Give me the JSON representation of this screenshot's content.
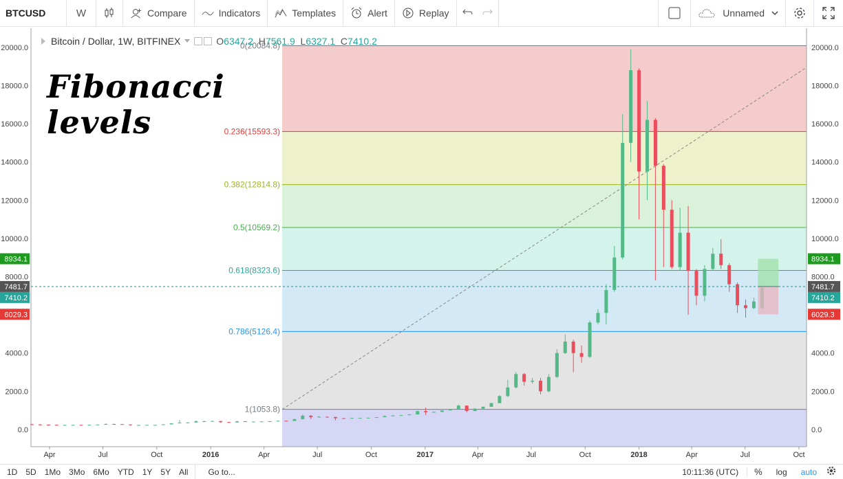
{
  "toolbar": {
    "symbol": "BTCUSD",
    "interval": "W",
    "compare": "Compare",
    "indicators": "Indicators",
    "templates": "Templates",
    "alert": "Alert",
    "replay": "Replay",
    "layout_name": "Unnamed"
  },
  "legend": {
    "title": "Bitcoin / Dollar, 1W, BITFINEX",
    "o_label": "O",
    "o": "6347.2",
    "h_label": "H",
    "h": "7561.9",
    "l_label": "L",
    "l": "6327.1",
    "c_label": "C",
    "c": "7410.2"
  },
  "overlay_title": [
    "Fibonacci",
    "levels"
  ],
  "bottombar": {
    "ranges": [
      "1D",
      "5D",
      "1Mo",
      "3Mo",
      "6Mo",
      "YTD",
      "1Y",
      "5Y",
      "All"
    ],
    "goto": "Go to...",
    "time": "10:11:36 (UTC)",
    "percent": "%",
    "log": "log",
    "auto": "auto"
  },
  "chart_data": {
    "type": "candlestick",
    "title": "Bitcoin / Dollar, 1W, BITFINEX",
    "y_ticks": [
      0,
      2000,
      4000,
      6000,
      8000,
      10000,
      12000,
      14000,
      16000,
      18000,
      20000
    ],
    "y_tick_labels": [
      "0.0",
      "2000.0",
      "4000.0",
      "",
      "8000.0",
      "10000.0",
      "12000.0",
      "14000.0",
      "16000.0",
      "18000.0",
      "20000.0"
    ],
    "ylim": [
      -900,
      21000
    ],
    "x_labels": [
      "Apr",
      "Jul",
      "Oct",
      "2016",
      "Apr",
      "Jul",
      "Oct",
      "2017",
      "Apr",
      "Jul",
      "Oct",
      "2018",
      "Apr",
      "Jul",
      "Oct"
    ],
    "x_label_dates": [
      "2015-04-01",
      "2015-07-01",
      "2015-10-01",
      "2016-01-01",
      "2016-04-01",
      "2016-07-01",
      "2016-10-01",
      "2017-01-01",
      "2017-04-01",
      "2017-07-01",
      "2017-10-01",
      "2018-01-01",
      "2018-04-01",
      "2018-07-01",
      "2018-10-01"
    ],
    "bold_x_labels": [
      "2016",
      "2017",
      "2018"
    ],
    "fib_levels": [
      {
        "ratio": "0",
        "value": 20084.8,
        "label": "0(20084.8)",
        "color": "#787b86"
      },
      {
        "ratio": "0.236",
        "value": 15593.3,
        "label": "0.236(15593.3)",
        "color": "#e53935"
      },
      {
        "ratio": "0.382",
        "value": 12814.8,
        "label": "0.382(12814.8)",
        "color": "#9fb51b"
      },
      {
        "ratio": "0.5",
        "value": 10569.2,
        "label": "0.5(10569.2)",
        "color": "#4caf50"
      },
      {
        "ratio": "0.618",
        "value": 8323.6,
        "label": "0.618(8323.6)",
        "color": "#26a69a"
      },
      {
        "ratio": "0.786",
        "value": 5126.4,
        "label": "0.786(5126.4)",
        "color": "#2196f3"
      },
      {
        "ratio": "1",
        "value": 1053.8,
        "label": "1(1053.8)",
        "color": "#787b86"
      }
    ],
    "fib_fills": [
      "#f4cccc",
      "#eef2cc",
      "#d9f2d9",
      "#d4f3ea",
      "#d3e9f5",
      "#e4e4e4",
      "#d6d6f5"
    ],
    "fib_start_date": "2016-05-02",
    "fib_bottom_value": -900,
    "price_labels": [
      {
        "value": 8934.1,
        "text": "8934.1",
        "color": "#1e9a1e"
      },
      {
        "value": 7481.7,
        "text": "7481.7",
        "color": "#555555"
      },
      {
        "value": 7410.2,
        "text": "7410.2",
        "color": "#26a69a"
      },
      {
        "value": 6029.3,
        "text": "6029.3",
        "color": "#e53935"
      }
    ],
    "current_price": 7481.7,
    "trend_line": {
      "from_date": "2016-05-02",
      "from_value": 1053.8,
      "to_date": "2018-12-10",
      "to_value": 20084.8
    },
    "position_tool": {
      "start_date": "2018-07-23",
      "end_date": "2018-08-27",
      "entry": 7481.7,
      "target": 8934.1,
      "stop": 6029.3
    },
    "candles": [
      {
        "d": "2015-03-02",
        "o": 270,
        "h": 300,
        "l": 250,
        "c": 260
      },
      {
        "d": "2015-03-16",
        "o": 260,
        "h": 290,
        "l": 240,
        "c": 250
      },
      {
        "d": "2015-03-30",
        "o": 250,
        "h": 270,
        "l": 230,
        "c": 245
      },
      {
        "d": "2015-04-13",
        "o": 245,
        "h": 260,
        "l": 215,
        "c": 225
      },
      {
        "d": "2015-04-27",
        "o": 225,
        "h": 245,
        "l": 210,
        "c": 235
      },
      {
        "d": "2015-05-11",
        "o": 235,
        "h": 250,
        "l": 225,
        "c": 240
      },
      {
        "d": "2015-05-25",
        "o": 240,
        "h": 250,
        "l": 220,
        "c": 225
      },
      {
        "d": "2015-06-08",
        "o": 225,
        "h": 250,
        "l": 220,
        "c": 245
      },
      {
        "d": "2015-06-22",
        "o": 245,
        "h": 270,
        "l": 240,
        "c": 260
      },
      {
        "d": "2015-07-06",
        "o": 260,
        "h": 320,
        "l": 255,
        "c": 285
      },
      {
        "d": "2015-07-20",
        "o": 285,
        "h": 300,
        "l": 270,
        "c": 280
      },
      {
        "d": "2015-08-03",
        "o": 280,
        "h": 290,
        "l": 250,
        "c": 265
      },
      {
        "d": "2015-08-17",
        "o": 265,
        "h": 270,
        "l": 200,
        "c": 230
      },
      {
        "d": "2015-08-31",
        "o": 230,
        "h": 245,
        "l": 220,
        "c": 235
      },
      {
        "d": "2015-09-14",
        "o": 235,
        "h": 245,
        "l": 225,
        "c": 240
      },
      {
        "d": "2015-09-28",
        "o": 240,
        "h": 250,
        "l": 230,
        "c": 240
      },
      {
        "d": "2015-10-12",
        "o": 240,
        "h": 275,
        "l": 235,
        "c": 270
      },
      {
        "d": "2015-10-26",
        "o": 270,
        "h": 330,
        "l": 265,
        "c": 325
      },
      {
        "d": "2015-11-09",
        "o": 325,
        "h": 500,
        "l": 310,
        "c": 360
      },
      {
        "d": "2015-11-23",
        "o": 360,
        "h": 380,
        "l": 320,
        "c": 370
      },
      {
        "d": "2015-12-07",
        "o": 370,
        "h": 470,
        "l": 360,
        "c": 430
      },
      {
        "d": "2015-12-21",
        "o": 430,
        "h": 460,
        "l": 410,
        "c": 430
      },
      {
        "d": "2016-01-04",
        "o": 430,
        "h": 460,
        "l": 420,
        "c": 440
      },
      {
        "d": "2016-01-18",
        "o": 440,
        "h": 445,
        "l": 360,
        "c": 385
      },
      {
        "d": "2016-02-01",
        "o": 385,
        "h": 400,
        "l": 365,
        "c": 375
      },
      {
        "d": "2016-02-15",
        "o": 375,
        "h": 440,
        "l": 370,
        "c": 430
      },
      {
        "d": "2016-02-29",
        "o": 430,
        "h": 440,
        "l": 400,
        "c": 410
      },
      {
        "d": "2016-03-14",
        "o": 410,
        "h": 420,
        "l": 400,
        "c": 415
      },
      {
        "d": "2016-03-28",
        "o": 415,
        "h": 425,
        "l": 405,
        "c": 420
      },
      {
        "d": "2016-04-11",
        "o": 420,
        "h": 440,
        "l": 415,
        "c": 430
      },
      {
        "d": "2016-04-25",
        "o": 430,
        "h": 465,
        "l": 425,
        "c": 455
      },
      {
        "d": "2016-05-09",
        "o": 455,
        "h": 460,
        "l": 440,
        "c": 450
      },
      {
        "d": "2016-05-23",
        "o": 450,
        "h": 560,
        "l": 440,
        "c": 540
      },
      {
        "d": "2016-06-06",
        "o": 540,
        "h": 780,
        "l": 530,
        "c": 720
      },
      {
        "d": "2016-06-20",
        "o": 720,
        "h": 760,
        "l": 550,
        "c": 650
      },
      {
        "d": "2016-07-04",
        "o": 650,
        "h": 700,
        "l": 630,
        "c": 665
      },
      {
        "d": "2016-07-18",
        "o": 665,
        "h": 680,
        "l": 620,
        "c": 655
      },
      {
        "d": "2016-08-01",
        "o": 655,
        "h": 660,
        "l": 480,
        "c": 590
      },
      {
        "d": "2016-08-15",
        "o": 590,
        "h": 600,
        "l": 560,
        "c": 575
      },
      {
        "d": "2016-08-29",
        "o": 575,
        "h": 620,
        "l": 570,
        "c": 605
      },
      {
        "d": "2016-09-12",
        "o": 605,
        "h": 620,
        "l": 590,
        "c": 605
      },
      {
        "d": "2016-09-26",
        "o": 605,
        "h": 625,
        "l": 600,
        "c": 615
      },
      {
        "d": "2016-10-10",
        "o": 615,
        "h": 650,
        "l": 610,
        "c": 645
      },
      {
        "d": "2016-10-24",
        "o": 645,
        "h": 740,
        "l": 640,
        "c": 700
      },
      {
        "d": "2016-11-07",
        "o": 700,
        "h": 750,
        "l": 690,
        "c": 730
      },
      {
        "d": "2016-11-21",
        "o": 730,
        "h": 760,
        "l": 720,
        "c": 750
      },
      {
        "d": "2016-12-05",
        "o": 750,
        "h": 800,
        "l": 745,
        "c": 790
      },
      {
        "d": "2016-12-19",
        "o": 790,
        "h": 980,
        "l": 785,
        "c": 960
      },
      {
        "d": "2017-01-02",
        "o": 960,
        "h": 1150,
        "l": 760,
        "c": 900
      },
      {
        "d": "2017-01-16",
        "o": 900,
        "h": 940,
        "l": 880,
        "c": 920
      },
      {
        "d": "2017-01-30",
        "o": 920,
        "h": 1010,
        "l": 910,
        "c": 1000
      },
      {
        "d": "2017-02-13",
        "o": 1000,
        "h": 1060,
        "l": 990,
        "c": 1050
      },
      {
        "d": "2017-02-27",
        "o": 1050,
        "h": 1290,
        "l": 1040,
        "c": 1250
      },
      {
        "d": "2017-03-13",
        "o": 1250,
        "h": 1260,
        "l": 900,
        "c": 970
      },
      {
        "d": "2017-03-27",
        "o": 970,
        "h": 1110,
        "l": 960,
        "c": 1090
      },
      {
        "d": "2017-04-10",
        "o": 1090,
        "h": 1200,
        "l": 1080,
        "c": 1190
      },
      {
        "d": "2017-04-24",
        "o": 1190,
        "h": 1400,
        "l": 1180,
        "c": 1380
      },
      {
        "d": "2017-05-08",
        "o": 1380,
        "h": 1800,
        "l": 1370,
        "c": 1750
      },
      {
        "d": "2017-05-22",
        "o": 1750,
        "h": 2600,
        "l": 1700,
        "c": 2200
      },
      {
        "d": "2017-06-05",
        "o": 2200,
        "h": 3000,
        "l": 2150,
        "c": 2900
      },
      {
        "d": "2017-06-19",
        "o": 2900,
        "h": 2950,
        "l": 2300,
        "c": 2500
      },
      {
        "d": "2017-07-03",
        "o": 2500,
        "h": 2700,
        "l": 2400,
        "c": 2550
      },
      {
        "d": "2017-07-17",
        "o": 2550,
        "h": 2700,
        "l": 1850,
        "c": 2000
      },
      {
        "d": "2017-07-31",
        "o": 2000,
        "h": 2900,
        "l": 1950,
        "c": 2750
      },
      {
        "d": "2017-08-14",
        "o": 2750,
        "h": 4200,
        "l": 2700,
        "c": 4000
      },
      {
        "d": "2017-08-28",
        "o": 4000,
        "h": 4980,
        "l": 3950,
        "c": 4600
      },
      {
        "d": "2017-09-11",
        "o": 4600,
        "h": 4700,
        "l": 3000,
        "c": 4000
      },
      {
        "d": "2017-09-25",
        "o": 4000,
        "h": 4400,
        "l": 3500,
        "c": 3800
      },
      {
        "d": "2017-10-09",
        "o": 3800,
        "h": 5700,
        "l": 3750,
        "c": 5600
      },
      {
        "d": "2017-10-23",
        "o": 5600,
        "h": 6300,
        "l": 5500,
        "c": 6100
      },
      {
        "d": "2017-11-06",
        "o": 6100,
        "h": 7600,
        "l": 5500,
        "c": 7300
      },
      {
        "d": "2017-11-20",
        "o": 7300,
        "h": 9600,
        "l": 7200,
        "c": 9000
      },
      {
        "d": "2017-12-04",
        "o": 9000,
        "h": 16500,
        "l": 8900,
        "c": 15000
      },
      {
        "d": "2017-12-18",
        "o": 15000,
        "h": 19900,
        "l": 14000,
        "c": 18800
      },
      {
        "d": "2018-01-01",
        "o": 18800,
        "h": 18900,
        "l": 11000,
        "c": 13500
      },
      {
        "d": "2018-01-15",
        "o": 13500,
        "h": 17200,
        "l": 12000,
        "c": 16200
      },
      {
        "d": "2018-01-29",
        "o": 16200,
        "h": 16300,
        "l": 7800,
        "c": 13800
      },
      {
        "d": "2018-02-12",
        "o": 13800,
        "h": 13900,
        "l": 8500,
        "c": 11500
      },
      {
        "d": "2018-02-26",
        "o": 11500,
        "h": 12000,
        "l": 8400,
        "c": 8500
      },
      {
        "d": "2018-03-12",
        "o": 8500,
        "h": 11600,
        "l": 8300,
        "c": 10300
      },
      {
        "d": "2018-03-26",
        "o": 10300,
        "h": 11700,
        "l": 6000,
        "c": 8300
      },
      {
        "d": "2018-04-09",
        "o": 8300,
        "h": 8400,
        "l": 6500,
        "c": 7000
      },
      {
        "d": "2018-04-23",
        "o": 7000,
        "h": 8600,
        "l": 6700,
        "c": 8400
      },
      {
        "d": "2018-05-07",
        "o": 8400,
        "h": 9500,
        "l": 8300,
        "c": 9200
      },
      {
        "d": "2018-05-21",
        "o": 9200,
        "h": 9950,
        "l": 8400,
        "c": 8600
      },
      {
        "d": "2018-06-04",
        "o": 8600,
        "h": 8700,
        "l": 7200,
        "c": 7600
      },
      {
        "d": "2018-06-18",
        "o": 7600,
        "h": 7700,
        "l": 6100,
        "c": 6500
      },
      {
        "d": "2018-07-02",
        "o": 6500,
        "h": 6800,
        "l": 5850,
        "c": 6350
      },
      {
        "d": "2018-07-16",
        "o": 6350,
        "h": 6900,
        "l": 6300,
        "c": 6700
      },
      {
        "d": "2018-07-30",
        "o": 6347.2,
        "h": 7561.9,
        "l": 6327.1,
        "c": 7410.2
      }
    ]
  }
}
